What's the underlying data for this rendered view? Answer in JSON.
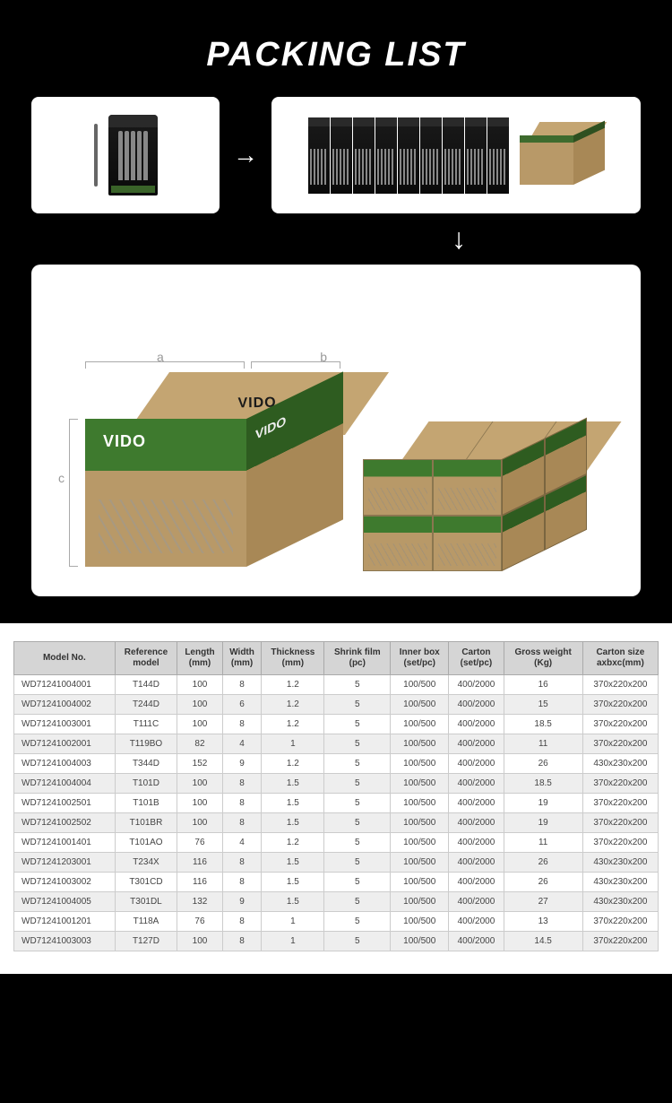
{
  "page": {
    "title": "PACKING LIST",
    "background": "#000000"
  },
  "brand": "VIDO",
  "dimensions": {
    "a": "a",
    "b": "b",
    "c": "c"
  },
  "colors": {
    "carton": "#b89968",
    "cartonTop": "#c4a572",
    "cartonSide": "#a88856",
    "brandGreen": "#3e7a2e",
    "brandGreenDark": "#2e5c20",
    "headerBg": "#d5d5d5",
    "rowEven": "#eeeeee",
    "rowOdd": "#ffffff"
  },
  "table": {
    "columns": [
      "Model No.",
      "Reference model",
      "Length (mm)",
      "Width (mm)",
      "Thickness (mm)",
      "Shrink film (pc)",
      "Inner box (set/pc)",
      "Carton (set/pc)",
      "Gross weight (Kg)",
      "Carton size axbxc(mm)"
    ],
    "rows": [
      [
        "WD71241004001",
        "T144D",
        "100",
        "8",
        "1.2",
        "5",
        "100/500",
        "400/2000",
        "16",
        "370x220x200"
      ],
      [
        "WD71241004002",
        "T244D",
        "100",
        "6",
        "1.2",
        "5",
        "100/500",
        "400/2000",
        "15",
        "370x220x200"
      ],
      [
        "WD71241003001",
        "T111C",
        "100",
        "8",
        "1.2",
        "5",
        "100/500",
        "400/2000",
        "18.5",
        "370x220x200"
      ],
      [
        "WD71241002001",
        "T119BO",
        "82",
        "4",
        "1",
        "5",
        "100/500",
        "400/2000",
        "11",
        "370x220x200"
      ],
      [
        "WD71241004003",
        "T344D",
        "152",
        "9",
        "1.2",
        "5",
        "100/500",
        "400/2000",
        "26",
        "430x230x200"
      ],
      [
        "WD71241004004",
        "T101D",
        "100",
        "8",
        "1.5",
        "5",
        "100/500",
        "400/2000",
        "18.5",
        "370x220x200"
      ],
      [
        "WD71241002501",
        "T101B",
        "100",
        "8",
        "1.5",
        "5",
        "100/500",
        "400/2000",
        "19",
        "370x220x200"
      ],
      [
        "WD71241002502",
        "T101BR",
        "100",
        "8",
        "1.5",
        "5",
        "100/500",
        "400/2000",
        "19",
        "370x220x200"
      ],
      [
        "WD71241001401",
        "T101AO",
        "76",
        "4",
        "1.2",
        "5",
        "100/500",
        "400/2000",
        "11",
        "370x220x200"
      ],
      [
        "WD71241203001",
        "T234X",
        "116",
        "8",
        "1.5",
        "5",
        "100/500",
        "400/2000",
        "26",
        "430x230x200"
      ],
      [
        "WD71241003002",
        "T301CD",
        "116",
        "8",
        "1.5",
        "5",
        "100/500",
        "400/2000",
        "26",
        "430x230x200"
      ],
      [
        "WD71241004005",
        "T301DL",
        "132",
        "9",
        "1.5",
        "5",
        "100/500",
        "400/2000",
        "27",
        "430x230x200"
      ],
      [
        "WD71241001201",
        "T118A",
        "76",
        "8",
        "1",
        "5",
        "100/500",
        "400/2000",
        "13",
        "370x220x200"
      ],
      [
        "WD71241003003",
        "T127D",
        "100",
        "8",
        "1",
        "5",
        "100/500",
        "400/2000",
        "14.5",
        "370x220x200"
      ]
    ]
  }
}
